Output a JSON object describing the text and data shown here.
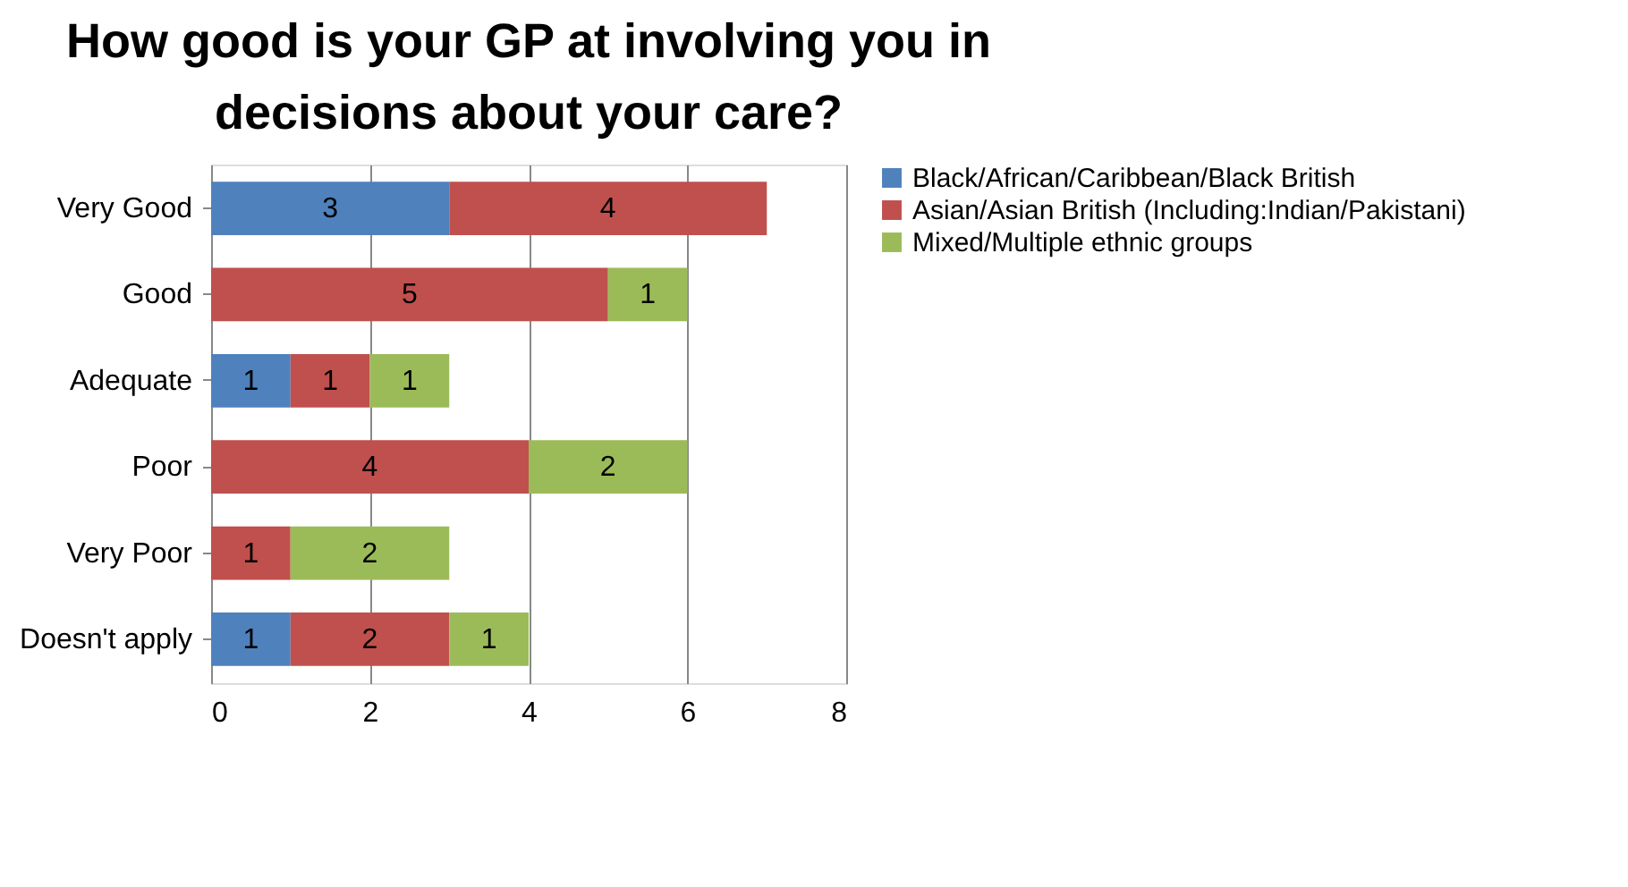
{
  "chart_data": {
    "type": "bar",
    "orientation": "horizontal",
    "stacked": true,
    "title": "How good is your GP at involving you in decisions about your care?",
    "categories": [
      "Very Good",
      "Good",
      "Adequate",
      "Poor",
      "Very Poor",
      "Doesn't apply"
    ],
    "series": [
      {
        "name": "Black/African/Caribbean/Black British",
        "color": "#4f81bd",
        "values": [
          3,
          null,
          1,
          null,
          null,
          1
        ]
      },
      {
        "name": "Asian/Asian British (Including:Indian/Pakistani)",
        "color": "#c0504d",
        "values": [
          4,
          5,
          1,
          4,
          1,
          2
        ]
      },
      {
        "name": "Mixed/Multiple ethnic groups",
        "color": "#9bbb59",
        "values": [
          null,
          1,
          1,
          2,
          2,
          1
        ]
      }
    ],
    "xlim": [
      0,
      8
    ],
    "xticks": [
      0,
      2,
      4,
      6,
      8
    ],
    "grid": "x",
    "legend": "right",
    "data_labels": true
  }
}
